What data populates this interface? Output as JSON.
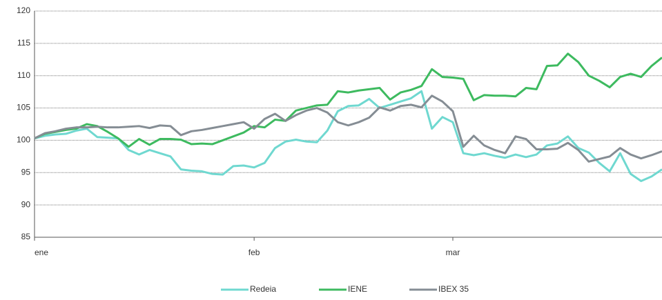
{
  "chart_data": {
    "type": "line",
    "categories": [
      "ene",
      null,
      null,
      null,
      null,
      null,
      null,
      null,
      null,
      null,
      null,
      null,
      null,
      null,
      null,
      null,
      null,
      null,
      null,
      null,
      null,
      "feb",
      null,
      null,
      null,
      null,
      null,
      null,
      null,
      null,
      null,
      null,
      null,
      null,
      null,
      null,
      null,
      null,
      null,
      null,
      "mar",
      null,
      null,
      null,
      null,
      null,
      null,
      null,
      null,
      null,
      null,
      null,
      null,
      null,
      null,
      null,
      null,
      null,
      null,
      null,
      null
    ],
    "series": [
      {
        "name": "Redeia",
        "color": "#6fd8d0",
        "values": [
          100.3,
          100.7,
          100.9,
          101.0,
          101.5,
          101.8,
          100.5,
          100.4,
          100.3,
          98.5,
          97.8,
          98.5,
          98.0,
          97.5,
          95.5,
          95.3,
          95.2,
          94.8,
          94.7,
          96.0,
          96.1,
          95.8,
          96.5,
          98.8,
          99.8,
          100.1,
          99.8,
          99.7,
          101.5,
          104.5,
          105.3,
          105.4,
          106.4,
          105.0,
          105.5,
          106.0,
          106.5,
          107.6,
          101.8,
          103.6,
          102.8,
          98.0,
          97.7,
          98.0,
          97.6,
          97.3,
          97.8,
          97.4,
          97.8,
          99.2,
          99.5,
          100.6,
          98.8,
          98.1,
          96.5,
          95.2,
          98.0,
          94.8,
          93.7,
          94.4,
          95.5
        ]
      },
      {
        "name": "IENE",
        "color": "#3dba5f",
        "values": [
          100.3,
          101.0,
          101.3,
          101.6,
          101.8,
          102.5,
          102.2,
          101.3,
          100.3,
          99.0,
          100.2,
          99.3,
          100.2,
          100.2,
          100.1,
          99.4,
          99.5,
          99.4,
          100.0,
          100.6,
          101.2,
          102.2,
          102.0,
          103.2,
          103.0,
          104.6,
          105.0,
          105.4,
          105.5,
          107.6,
          107.4,
          107.7,
          107.9,
          108.1,
          106.3,
          107.4,
          107.8,
          108.4,
          111.0,
          109.8,
          109.7,
          109.5,
          106.2,
          107.0,
          106.9,
          106.9,
          106.8,
          108.1,
          107.9,
          111.5,
          111.6,
          113.4,
          112.1,
          110.0,
          109.2,
          108.2,
          109.8,
          110.3,
          109.8,
          111.5,
          112.8
        ]
      },
      {
        "name": "IBEX 35",
        "color": "#858d94",
        "values": [
          100.3,
          101.1,
          101.4,
          101.8,
          102.0,
          102.0,
          102.1,
          102.0,
          102.0,
          102.1,
          102.2,
          101.9,
          102.3,
          102.2,
          100.8,
          101.4,
          101.6,
          101.9,
          102.2,
          102.5,
          102.8,
          101.8,
          103.3,
          104.1,
          103.0,
          103.9,
          104.6,
          105.0,
          104.3,
          102.8,
          102.3,
          102.8,
          103.5,
          105.1,
          104.6,
          105.3,
          105.5,
          105.1,
          106.9,
          106.0,
          104.5,
          99.0,
          100.7,
          99.2,
          98.5,
          98.0,
          100.6,
          100.2,
          98.6,
          98.6,
          98.7,
          99.6,
          98.5,
          96.7,
          97.1,
          97.5,
          98.8,
          97.8,
          97.2,
          97.7,
          98.3
        ]
      }
    ],
    "ylim": [
      85,
      120
    ],
    "yticks": [
      85,
      90,
      95,
      100,
      105,
      110,
      115,
      120
    ],
    "grid": true,
    "legend": "bottom"
  }
}
